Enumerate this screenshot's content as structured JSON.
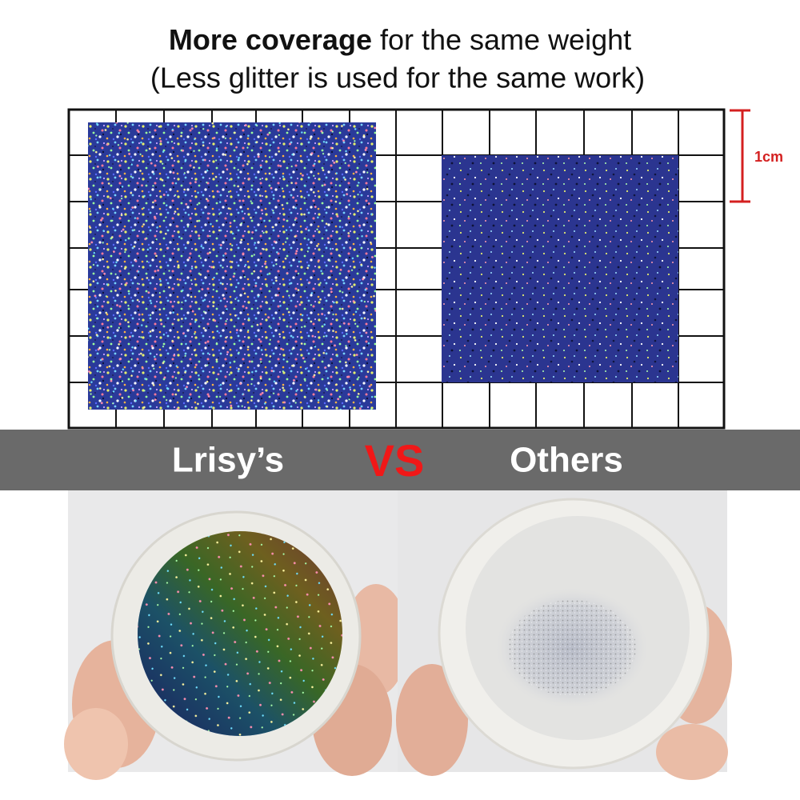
{
  "header": {
    "title_bold": "More coverage",
    "title_rest": "for the same weight",
    "subtitle": "(Less glitter is used for the same work)"
  },
  "scale_label": "1cm",
  "comparison": {
    "left": "Lrisy’s",
    "vs": "VS",
    "right": "Others"
  }
}
